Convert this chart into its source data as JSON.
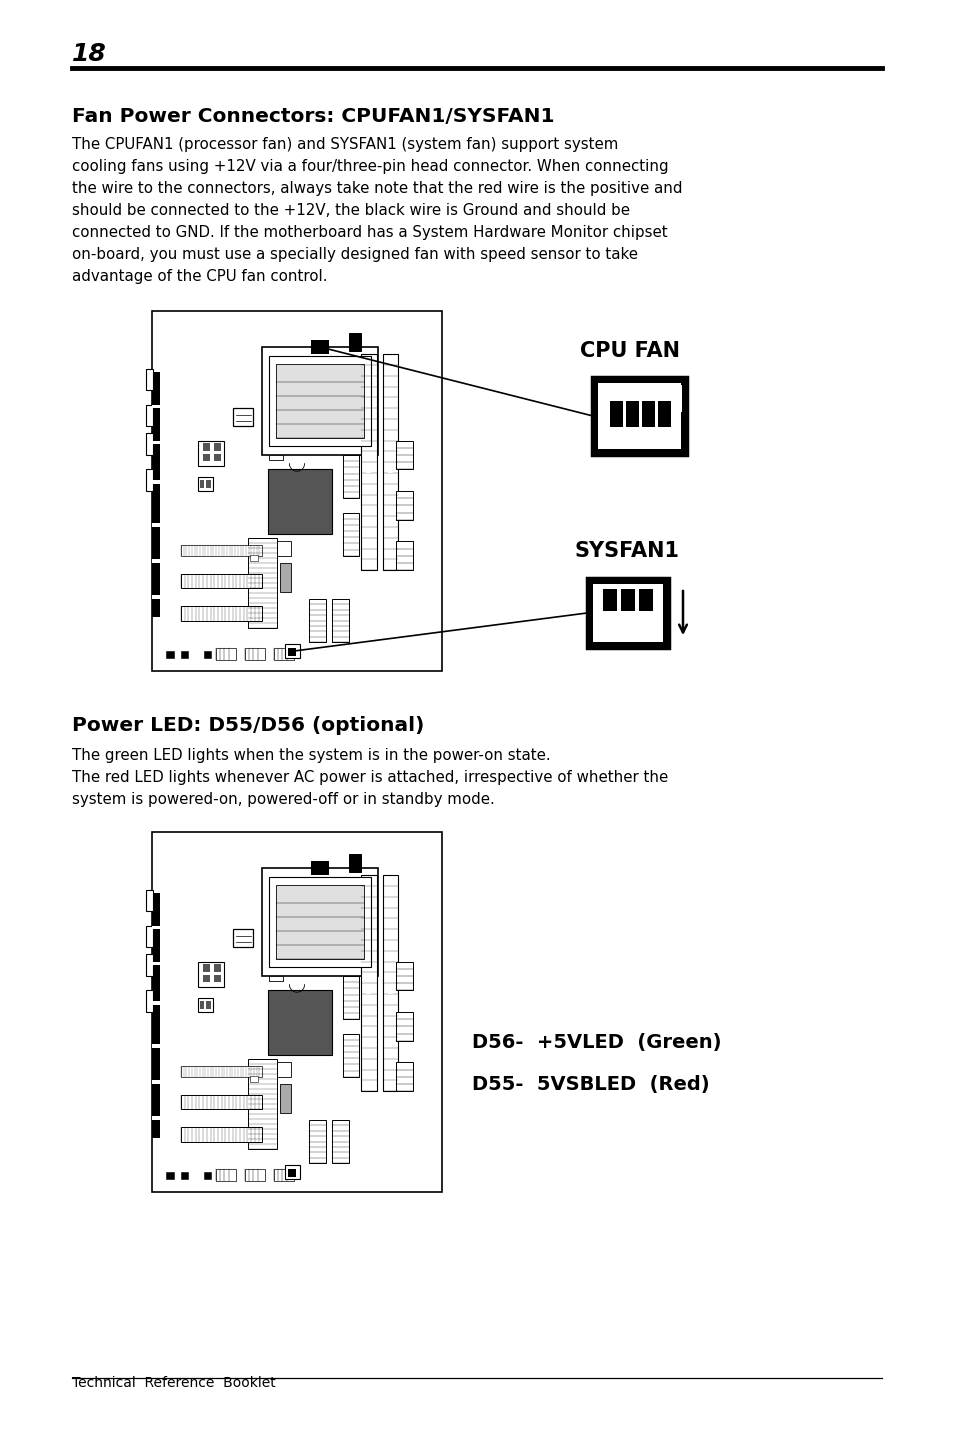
{
  "page_number": "18",
  "bg_color": "#ffffff",
  "section1_title": "Fan Power Connectors: CPUFAN1/SYSFAN1",
  "section1_body_lines": [
    "The CPUFAN1 (processor fan) and SYSFAN1 (system fan) support system",
    "cooling fans using +12V via a four/three-pin head connector. When connecting",
    "the wire to the connectors, always take note that the red wire is the positive and",
    "should be connected to the +12V, the black wire is Ground and should be",
    "connected to GND. If the motherboard has a System Hardware Monitor chipset",
    "on-board, you must use a specially designed fan with speed sensor to take",
    "advantage of the CPU fan control."
  ],
  "cpu_fan_label": "CPU FAN",
  "sysfan1_label": "SYSFAN1",
  "section2_title": "Power LED: D55/D56 (optional)",
  "section2_body_lines": [
    "The green LED lights when the system is in the power-on state.",
    "The red LED lights whenever AC power is attached, irrespective of whether the",
    "system is powered-on, powered-off or in standby mode."
  ],
  "d56_label": "D56-  +5VLED  (Green)",
  "d55_label": "D55-  5VSBLED  (Red)",
  "footer_text": "Technical  Reference  Booklet",
  "lm": 72,
  "rm": 882
}
